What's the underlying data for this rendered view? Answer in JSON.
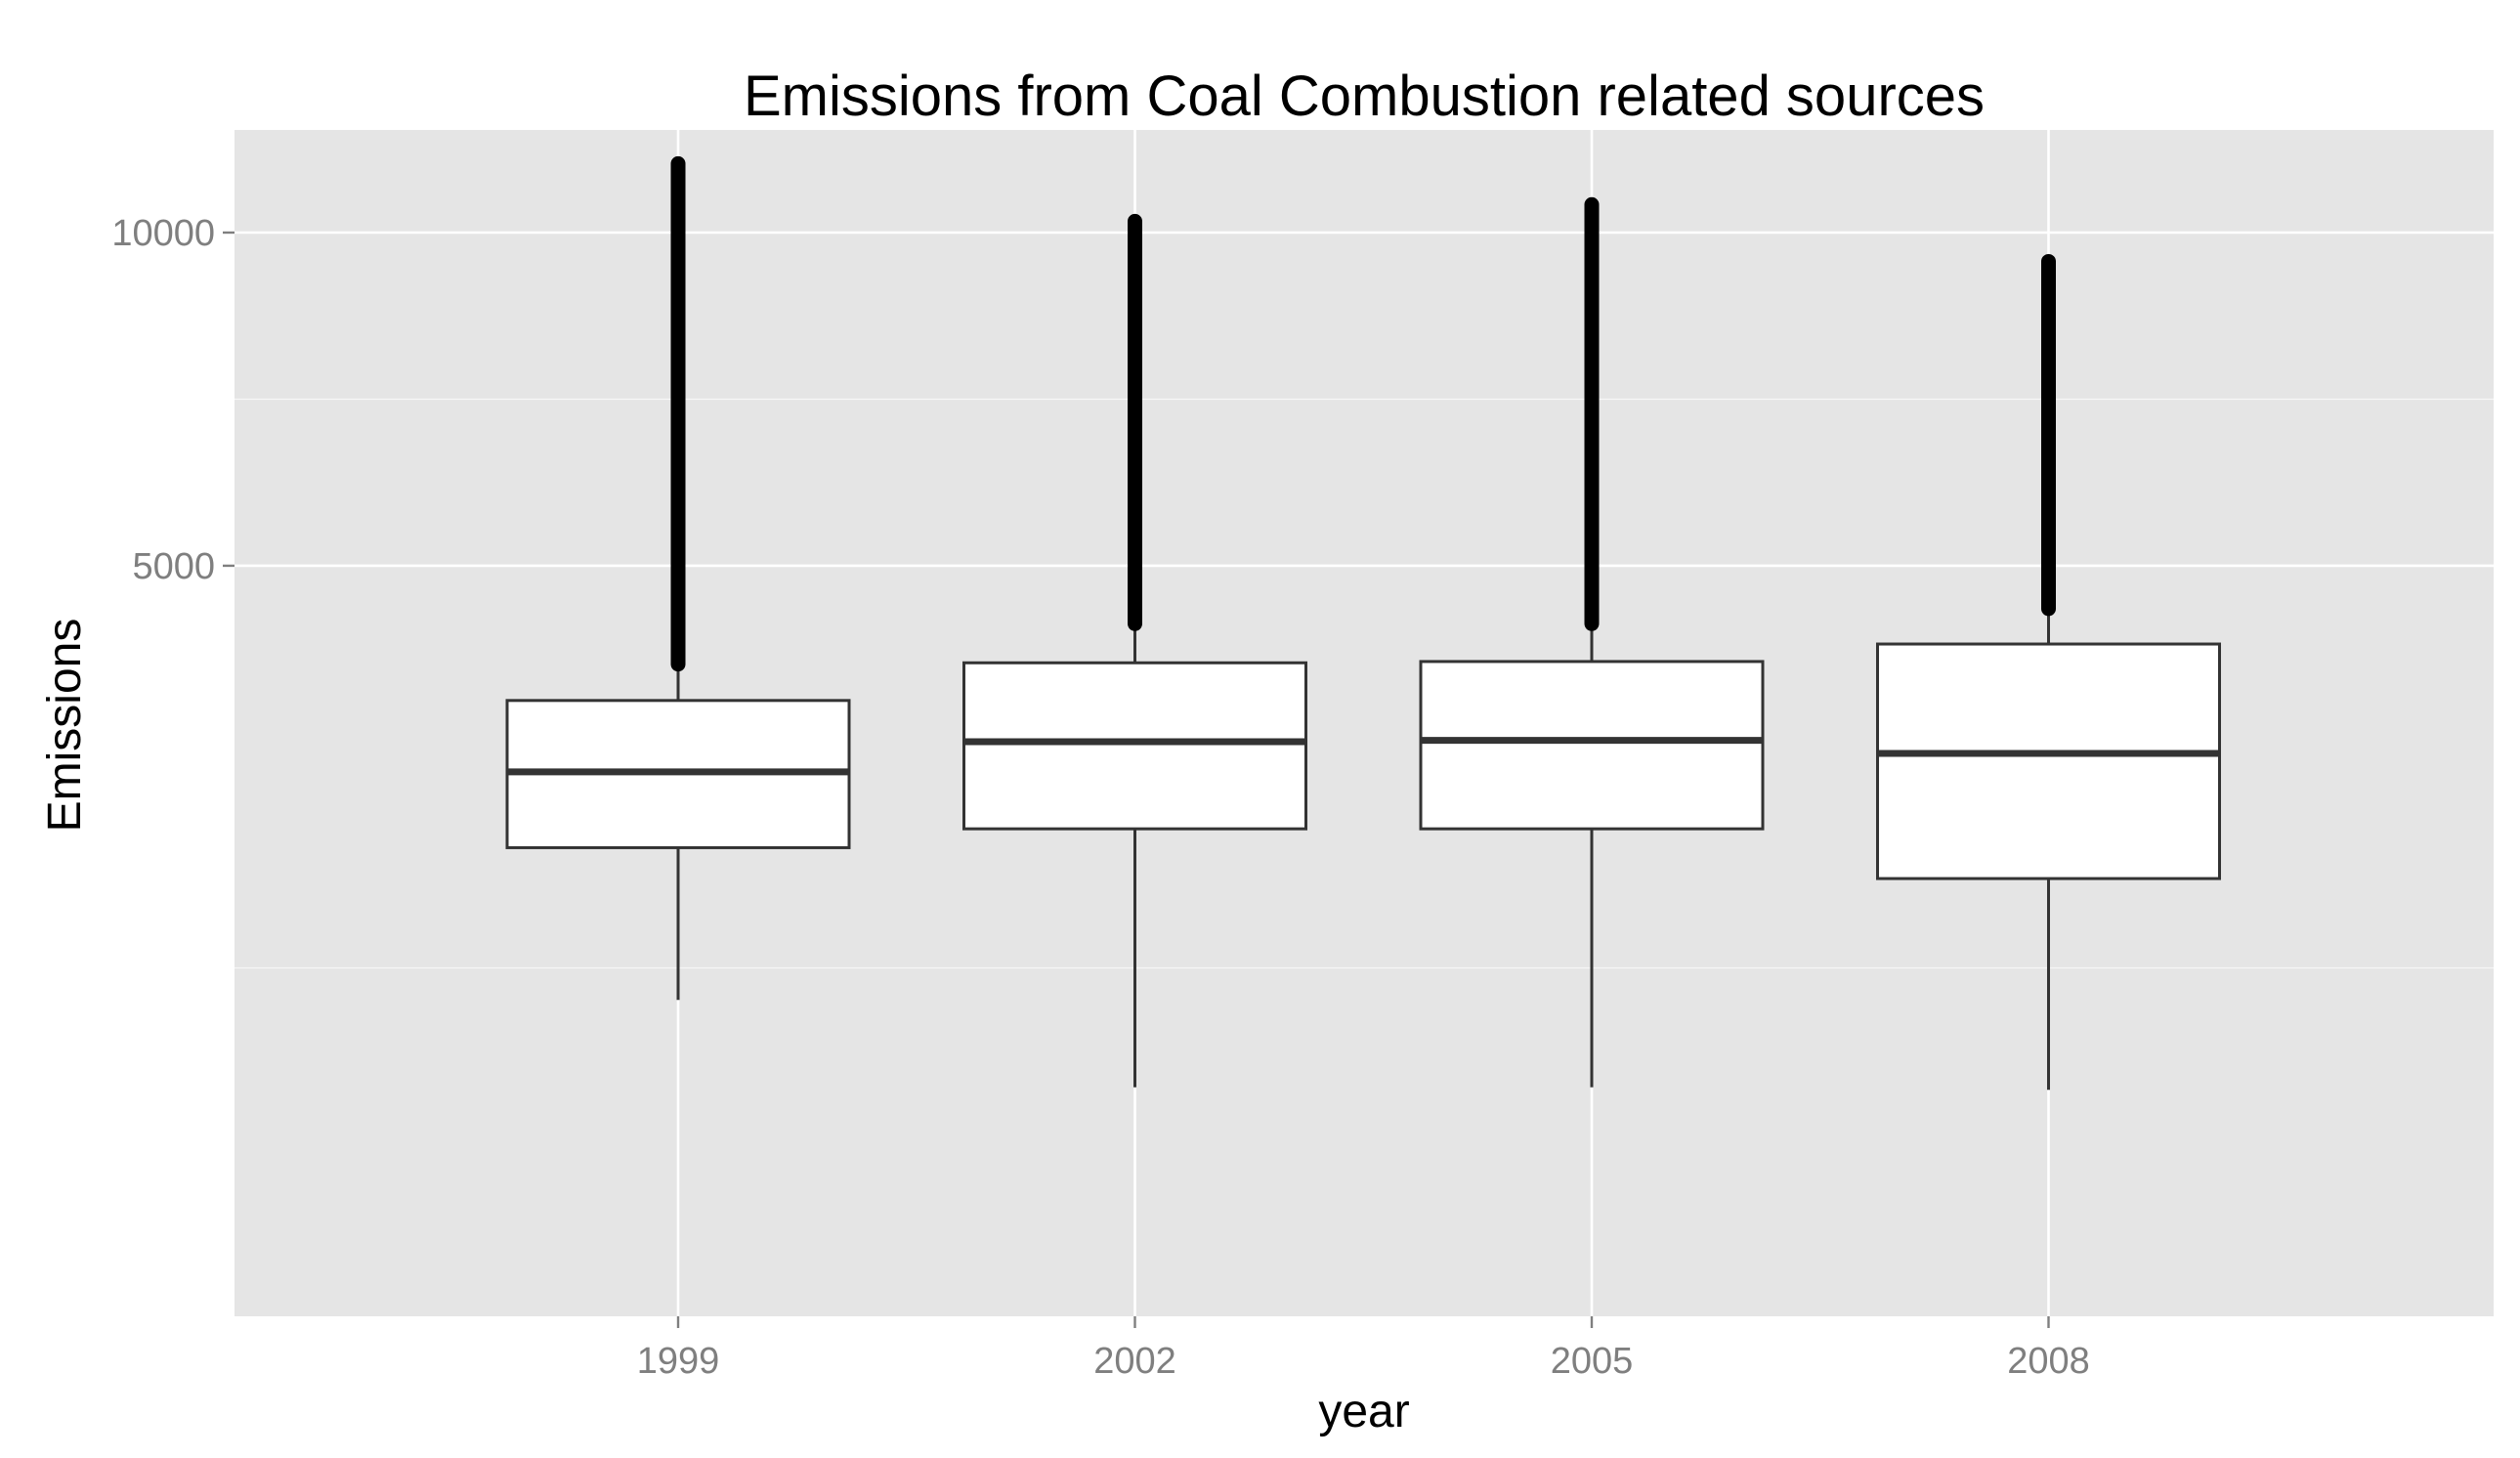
{
  "chart_data": {
    "type": "box",
    "title": "Emissions from Coal Combustion related sources",
    "xlabel": "year",
    "ylabel": "Emissions",
    "categories": [
      "1999",
      "2002",
      "2005",
      "2008"
    ],
    "y_scale": "sqrt",
    "y_ticks": [
      5000,
      10000
    ],
    "y_tick_labels": [
      "5000",
      "10000"
    ],
    "ylim": [
      0,
      12500
    ],
    "boxes": [
      {
        "category": "1999",
        "whisker_low": 1059,
        "q1": 2109,
        "median": 2766,
        "q3": 3465,
        "whisker_high": 3810,
        "outlier_low": 3850,
        "outlier_high": 11250
      },
      {
        "category": "2002",
        "whisker_low": 618,
        "q1": 2264,
        "median": 3051,
        "q3": 3866,
        "whisker_high": 4285,
        "outlier_low": 4305,
        "outlier_high": 10200
      },
      {
        "category": "2005",
        "whisker_low": 618,
        "q1": 2264,
        "median": 3065,
        "q3": 3880,
        "whisker_high": 4285,
        "outlier_low": 4305,
        "outlier_high": 10500
      },
      {
        "category": "2008",
        "whisker_low": 607,
        "q1": 1867,
        "median": 2939,
        "q3": 4074,
        "whisker_high": 4449,
        "outlier_low": 4480,
        "outlier_high": 9500
      }
    ],
    "grid": true,
    "legend": "none",
    "colors": {
      "panel_background": "#e5e5e5",
      "grid_line": "#ffffff",
      "box_fill": "#ffffff",
      "box_stroke": "#333333",
      "outlier": "#000000",
      "tick_label": "#7f7f7f",
      "tick_mark": "#7f7f7f"
    }
  }
}
